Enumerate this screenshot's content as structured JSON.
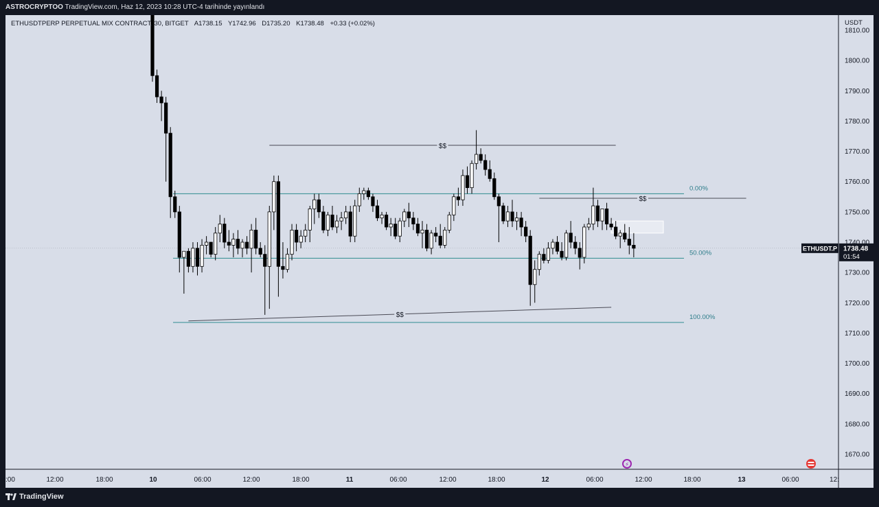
{
  "header": {
    "author": "ASTROCRYPTOO",
    "publish_text": "TradingView.com, Haz 12, 2023 10:28 UTC-4 tarihinde yayınlandı"
  },
  "legend": {
    "symbol": "ETHUSDTPERP PERPETUAL MIX CONTRACT, 30, BITGET",
    "open": "A1738.15",
    "high": "Y1742.96",
    "low": "D1735.20",
    "close": "K1738.48",
    "change": "+0.33 (+0.02%)"
  },
  "price_badge": {
    "symbol": "ETHUSDT.P",
    "price": "1738.48",
    "countdown": "01:54"
  },
  "footer": {
    "brand": "TradingView"
  },
  "icons": {
    "left": "lightning-icon",
    "right": "us-flag-icon"
  },
  "colors": {
    "background": "#d8dde8",
    "up_body": "#ffffff",
    "down_body": "#000000",
    "fib_line": "#2e8b8f",
    "fib_text": "#2e7d8a",
    "frame": "#131722"
  },
  "chart_data": {
    "type": "candlestick",
    "y_axis_unit": "USDT",
    "ylim": [
      1665,
      1815
    ],
    "y_ticks": [
      "1810.00",
      "1800.00",
      "1790.00",
      "1780.00",
      "1770.00",
      "1760.00",
      "1750.00",
      "1740.00",
      "1730.00",
      "1720.00",
      "1710.00",
      "1700.00",
      "1690.00",
      "1680.00",
      "1670.00"
    ],
    "x_ticks": [
      ":00",
      "12:00",
      "18:00",
      "10",
      "06:00",
      "12:00",
      "18:00",
      "11",
      "06:00",
      "12:00",
      "18:00",
      "12",
      "06:00",
      "12:00",
      "18:00",
      "13",
      "06:00",
      "12:"
    ],
    "candles": [
      [
        1820,
        1830,
        1793,
        1795
      ],
      [
        1795,
        1797,
        1786,
        1788
      ],
      [
        1788,
        1790,
        1780,
        1786
      ],
      [
        1786,
        1788,
        1760,
        1776
      ],
      [
        1776,
        1778,
        1748,
        1755
      ],
      [
        1755,
        1757,
        1748,
        1750
      ],
      [
        1750,
        1752,
        1730,
        1735
      ],
      [
        1735,
        1736,
        1723,
        1737
      ],
      [
        1737,
        1738,
        1730,
        1732
      ],
      [
        1732,
        1740,
        1730,
        1738
      ],
      [
        1738,
        1740,
        1729,
        1732
      ],
      [
        1732,
        1741,
        1730,
        1739
      ],
      [
        1739,
        1742,
        1736,
        1740
      ],
      [
        1740,
        1740,
        1735,
        1736
      ],
      [
        1736,
        1745,
        1734,
        1743
      ],
      [
        1743,
        1749,
        1740,
        1746
      ],
      [
        1746,
        1748,
        1738,
        1740
      ],
      [
        1740,
        1744,
        1737,
        1739
      ],
      [
        1739,
        1743,
        1735,
        1741
      ],
      [
        1741,
        1744,
        1736,
        1738
      ],
      [
        1738,
        1741,
        1735,
        1740
      ],
      [
        1740,
        1742,
        1736,
        1738
      ],
      [
        1738,
        1746,
        1730,
        1744
      ],
      [
        1744,
        1748,
        1736,
        1738
      ],
      [
        1738,
        1740,
        1735,
        1736
      ],
      [
        1736,
        1739,
        1716,
        1732
      ],
      [
        1732,
        1752,
        1718,
        1750
      ],
      [
        1750,
        1762,
        1744,
        1760
      ],
      [
        1760,
        1762,
        1722,
        1732
      ],
      [
        1732,
        1740,
        1728,
        1731
      ],
      [
        1731,
        1738,
        1730,
        1736
      ],
      [
        1736,
        1746,
        1734,
        1744
      ],
      [
        1744,
        1746,
        1737,
        1740
      ],
      [
        1740,
        1744,
        1738,
        1742
      ],
      [
        1742,
        1746,
        1740,
        1744
      ],
      [
        1744,
        1752,
        1740,
        1751
      ],
      [
        1751,
        1756,
        1746,
        1754
      ],
      [
        1754,
        1756,
        1748,
        1750
      ],
      [
        1750,
        1752,
        1743,
        1744
      ],
      [
        1744,
        1750,
        1742,
        1749
      ],
      [
        1749,
        1752,
        1744,
        1745
      ],
      [
        1745,
        1749,
        1743,
        1747
      ],
      [
        1747,
        1750,
        1744,
        1748
      ],
      [
        1748,
        1752,
        1746,
        1750
      ],
      [
        1750,
        1752,
        1740,
        1742
      ],
      [
        1742,
        1754,
        1740,
        1752
      ],
      [
        1752,
        1758,
        1750,
        1756
      ],
      [
        1756,
        1758,
        1754,
        1757
      ],
      [
        1757,
        1758,
        1754,
        1755
      ],
      [
        1755,
        1756,
        1750,
        1752
      ],
      [
        1752,
        1754,
        1747,
        1748
      ],
      [
        1748,
        1750,
        1746,
        1749
      ],
      [
        1749,
        1750,
        1744,
        1745
      ],
      [
        1745,
        1748,
        1742,
        1746
      ],
      [
        1746,
        1748,
        1741,
        1742
      ],
      [
        1742,
        1748,
        1740,
        1747
      ],
      [
        1747,
        1751,
        1745,
        1750
      ],
      [
        1750,
        1753,
        1745,
        1748
      ],
      [
        1748,
        1750,
        1744,
        1746
      ],
      [
        1746,
        1748,
        1742,
        1743
      ],
      [
        1743,
        1747,
        1738,
        1744
      ],
      [
        1744,
        1746,
        1737,
        1738
      ],
      [
        1738,
        1744,
        1736,
        1743
      ],
      [
        1743,
        1745,
        1740,
        1742
      ],
      [
        1742,
        1746,
        1738,
        1739
      ],
      [
        1739,
        1745,
        1738,
        1744
      ],
      [
        1744,
        1750,
        1743,
        1749
      ],
      [
        1749,
        1756,
        1747,
        1755
      ],
      [
        1755,
        1758,
        1752,
        1754
      ],
      [
        1754,
        1764,
        1752,
        1762
      ],
      [
        1762,
        1765,
        1756,
        1758
      ],
      [
        1758,
        1767,
        1756,
        1766
      ],
      [
        1766,
        1777,
        1764,
        1769
      ],
      [
        1769,
        1771,
        1766,
        1767
      ],
      [
        1767,
        1769,
        1762,
        1764
      ],
      [
        1764,
        1767,
        1760,
        1761
      ],
      [
        1761,
        1763,
        1754,
        1755
      ],
      [
        1755,
        1756,
        1740,
        1752
      ],
      [
        1752,
        1753,
        1746,
        1747
      ],
      [
        1747,
        1752,
        1745,
        1750
      ],
      [
        1750,
        1754,
        1745,
        1747
      ],
      [
        1747,
        1750,
        1744,
        1748
      ],
      [
        1748,
        1750,
        1742,
        1745
      ],
      [
        1745,
        1747,
        1740,
        1742
      ],
      [
        1742,
        1744,
        1719,
        1726
      ],
      [
        1726,
        1734,
        1720,
        1731
      ],
      [
        1731,
        1737,
        1729,
        1736
      ],
      [
        1736,
        1738,
        1733,
        1734
      ],
      [
        1734,
        1740,
        1733,
        1738
      ],
      [
        1738,
        1741,
        1736,
        1740
      ],
      [
        1740,
        1742,
        1736,
        1737
      ],
      [
        1737,
        1740,
        1734,
        1735
      ],
      [
        1735,
        1744,
        1734,
        1743
      ],
      [
        1743,
        1747,
        1738,
        1740
      ],
      [
        1740,
        1742,
        1736,
        1738
      ],
      [
        1738,
        1740,
        1731,
        1735
      ],
      [
        1735,
        1746,
        1733,
        1745
      ],
      [
        1745,
        1748,
        1744,
        1746
      ],
      [
        1746,
        1758,
        1744,
        1752
      ],
      [
        1752,
        1754,
        1745,
        1747
      ],
      [
        1747,
        1750,
        1744,
        1751
      ],
      [
        1751,
        1753,
        1744,
        1746
      ],
      [
        1746,
        1748,
        1744,
        1745
      ],
      [
        1745,
        1747,
        1741,
        1742
      ],
      [
        1742,
        1744,
        1738,
        1743
      ],
      [
        1743,
        1746,
        1740,
        1741
      ],
      [
        1741,
        1745,
        1736,
        1739
      ],
      [
        1739,
        1743,
        1735,
        1738
      ]
    ],
    "fib_levels": [
      {
        "label": "0.00%",
        "price": 1756
      },
      {
        "label": "50.00%",
        "price": 1734.7
      },
      {
        "label": "100.00%",
        "price": 1713.5
      }
    ],
    "annotations": [
      {
        "label": "$$",
        "from": [
          26,
          1772
        ],
        "to": [
          103,
          1772
        ]
      },
      {
        "label": "$$",
        "from": [
          86,
          1754.5
        ],
        "to": [
          132,
          1754.5
        ]
      },
      {
        "label": "$$",
        "from": [
          8,
          1714
        ],
        "to": [
          102,
          1718.5
        ]
      }
    ],
    "rectangle": {
      "from_index": 102,
      "to_index": 130,
      "top": 1747,
      "bottom": 1743
    }
  }
}
